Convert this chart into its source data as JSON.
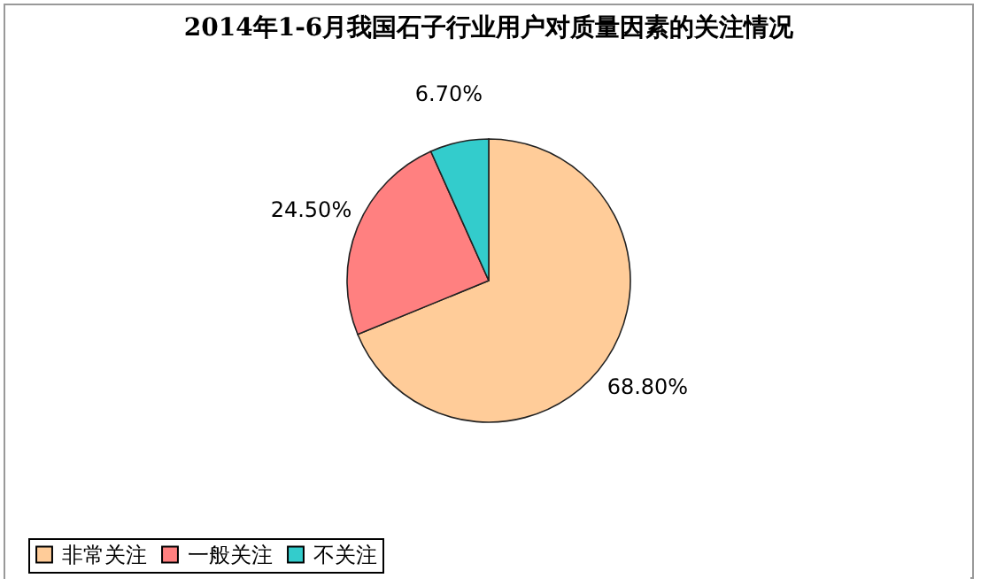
{
  "chart_data": {
    "type": "pie",
    "title": "2014年1-6月我国石子行业用户对质量因素的关注情况",
    "categories": [
      "非常关注",
      "一般关注",
      "不关注"
    ],
    "values": [
      68.8,
      24.5,
      6.7
    ],
    "value_labels": [
      "68.80%",
      "24.50%",
      "6.70%"
    ],
    "colors": [
      "#ffcc99",
      "#ff8080",
      "#33cccc"
    ],
    "legend": "bottom"
  }
}
